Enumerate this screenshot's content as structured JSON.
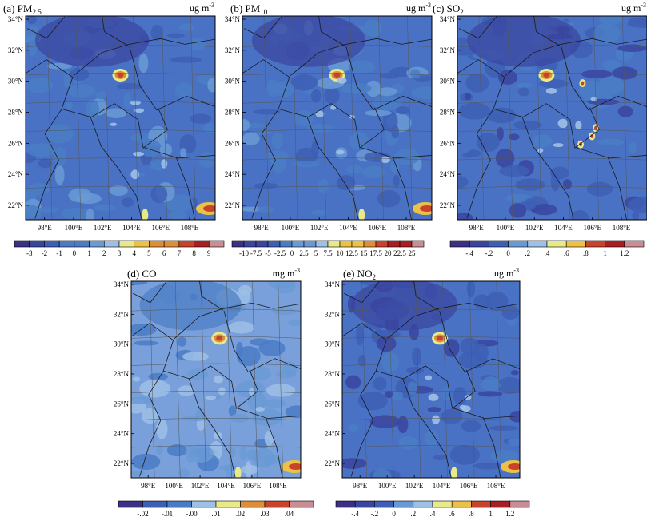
{
  "colors": {
    "scale": [
      "#3b2f86",
      "#3a45a0",
      "#3d5fb5",
      "#4a7cc5",
      "#6a9ad5",
      "#9ec0e6",
      "#e8ea8a",
      "#ebc246",
      "#de8e36",
      "#c8422c",
      "#a81e23",
      "#c98d95"
    ],
    "map_background": "#4a72c4",
    "map_light": "#79a0db",
    "boundary": "#1a1a1a"
  },
  "panels": [
    {
      "id": "a",
      "title": "(a) PM",
      "title_sub": "2.5",
      "unit_main": "ug m",
      "unit_sup": "-3",
      "lat_ticks": [
        "34°N",
        "32°N",
        "30°N",
        "28°N",
        "26°N",
        "24°N",
        "22°N"
      ],
      "lon_ticks": [
        "98°E",
        "100°E",
        "102°E",
        "104°E",
        "106°E",
        "108°E"
      ],
      "colorbar_labels": [
        "-3",
        "-2",
        "-1",
        "0",
        "1",
        "2",
        "3",
        "4",
        "5",
        "6",
        "7",
        "8",
        "9"
      ]
    },
    {
      "id": "b",
      "title": "(b) PM",
      "title_sub": "10",
      "unit_main": "ug m",
      "unit_sup": "-3",
      "lat_ticks": [
        "34°N",
        "32°N",
        "30°N",
        "28°N",
        "26°N",
        "24°N",
        "22°N"
      ],
      "lon_ticks": [
        "98°E",
        "100°E",
        "102°E",
        "104°E",
        "106°E",
        "108°E"
      ],
      "colorbar_labels": [
        "-10",
        "-7.5",
        "-5",
        "-2.5",
        "0",
        "2.5",
        "5",
        "7.5",
        "10",
        "12.5",
        "15",
        "17.5",
        "20",
        "22.5",
        "25"
      ]
    },
    {
      "id": "c",
      "title": "(c) SO",
      "title_sub": "2",
      "unit_main": "ug m",
      "unit_sup": "-3",
      "lat_ticks": [
        "34°N",
        "32°N",
        "30°N",
        "28°N",
        "26°N",
        "24°N",
        "22°N"
      ],
      "lon_ticks": [
        "98°E",
        "100°E",
        "102°E",
        "104°E",
        "106°E",
        "108°E"
      ],
      "colorbar_labels": [
        "-.4",
        "-.2",
        "0",
        ".2",
        ".4",
        ".6",
        ".8",
        "1",
        "1.2"
      ]
    },
    {
      "id": "d",
      "title": "(d) CO",
      "title_sub": "",
      "unit_main": "mg m",
      "unit_sup": "-3",
      "lat_ticks": [
        "34°N",
        "32°N",
        "30°N",
        "28°N",
        "26°N",
        "24°N",
        "22°N"
      ],
      "lon_ticks": [
        "98°E",
        "100°E",
        "102°E",
        "104°E",
        "106°E",
        "108°E"
      ],
      "colorbar_labels": [
        "-.02",
        "-.01",
        "-.00",
        ".01",
        ".02",
        ".03",
        ".04"
      ]
    },
    {
      "id": "e",
      "title": "(e) NO",
      "title_sub": "2",
      "unit_main": "ug m",
      "unit_sup": "-3",
      "lat_ticks": [
        "34°N",
        "32°N",
        "30°N",
        "28°N",
        "26°N",
        "24°N",
        "22°N"
      ],
      "lon_ticks": [
        "98°E",
        "100°E",
        "102°E",
        "104°E",
        "106°E",
        "108°E"
      ],
      "colorbar_labels": [
        "-.4",
        "-.2",
        "0",
        ".2",
        ".4",
        ".6",
        ".8",
        "1",
        "1.2"
      ]
    }
  ],
  "chart_data": [
    {
      "type": "heatmap",
      "title": "(a) PM2.5",
      "unit": "ug m-3",
      "x_ticks": [
        "98°E",
        "100°E",
        "102°E",
        "104°E",
        "106°E",
        "108°E"
      ],
      "y_ticks": [
        "22°N",
        "24°N",
        "26°N",
        "28°N",
        "30°N",
        "32°N",
        "34°N"
      ],
      "levels": [
        -3,
        -2,
        -1,
        0,
        1,
        2,
        3,
        4,
        5,
        6,
        7,
        8,
        9
      ]
    },
    {
      "type": "heatmap",
      "title": "(b) PM10",
      "unit": "ug m-3",
      "x_ticks": [
        "98°E",
        "100°E",
        "102°E",
        "104°E",
        "106°E",
        "108°E"
      ],
      "y_ticks": [
        "22°N",
        "24°N",
        "26°N",
        "28°N",
        "30°N",
        "32°N",
        "34°N"
      ],
      "levels": [
        -10,
        -7.5,
        -5,
        -2.5,
        0,
        2.5,
        5,
        7.5,
        10,
        12.5,
        15,
        17.5,
        20,
        22.5,
        25
      ]
    },
    {
      "type": "heatmap",
      "title": "(c) SO2",
      "unit": "ug m-3",
      "x_ticks": [
        "98°E",
        "100°E",
        "102°E",
        "104°E",
        "106°E",
        "108°E"
      ],
      "y_ticks": [
        "22°N",
        "24°N",
        "26°N",
        "28°N",
        "30°N",
        "32°N",
        "34°N"
      ],
      "levels": [
        -0.4,
        -0.2,
        0,
        0.2,
        0.4,
        0.6,
        0.8,
        1,
        1.2
      ]
    },
    {
      "type": "heatmap",
      "title": "(d) CO",
      "unit": "mg m-3",
      "x_ticks": [
        "98°E",
        "100°E",
        "102°E",
        "104°E",
        "106°E",
        "108°E"
      ],
      "y_ticks": [
        "22°N",
        "24°N",
        "26°N",
        "28°N",
        "30°N",
        "32°N",
        "34°N"
      ],
      "levels": [
        -0.02,
        -0.01,
        0,
        0.01,
        0.02,
        0.03,
        0.04
      ]
    },
    {
      "type": "heatmap",
      "title": "(e) NO2",
      "unit": "ug m-3",
      "x_ticks": [
        "98°E",
        "100°E",
        "102°E",
        "104°E",
        "106°E",
        "108°E"
      ],
      "y_ticks": [
        "22°N",
        "24°N",
        "26°N",
        "28°N",
        "30°N",
        "32°N",
        "34°N"
      ],
      "levels": [
        -0.4,
        -0.2,
        0,
        0.2,
        0.4,
        0.6,
        0.8,
        1,
        1.2
      ]
    }
  ]
}
